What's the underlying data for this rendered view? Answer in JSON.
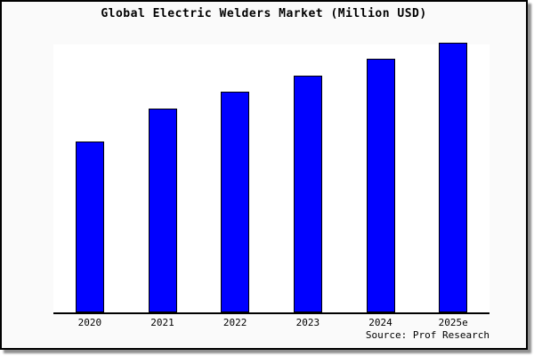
{
  "chart_data": {
    "type": "bar",
    "title": "Global Electric Welders Market (Million USD)",
    "categories": [
      "2020",
      "2021",
      "2022",
      "2023",
      "2024",
      "2025e"
    ],
    "values_pct_of_max": [
      63.0,
      75.3,
      81.7,
      87.7,
      94.0,
      100.0
    ],
    "value_labels_shown": false,
    "y_axis_ticks": "none (no numeric scale shown)",
    "gridlines": false,
    "legend": "none",
    "bar_color": "#0000ff",
    "bar_border_color": "#000000",
    "plot_background": "#ffffff",
    "panel_background": "#fafafa",
    "axis_color": "#000000",
    "source_note": "Source: Prof Research"
  }
}
